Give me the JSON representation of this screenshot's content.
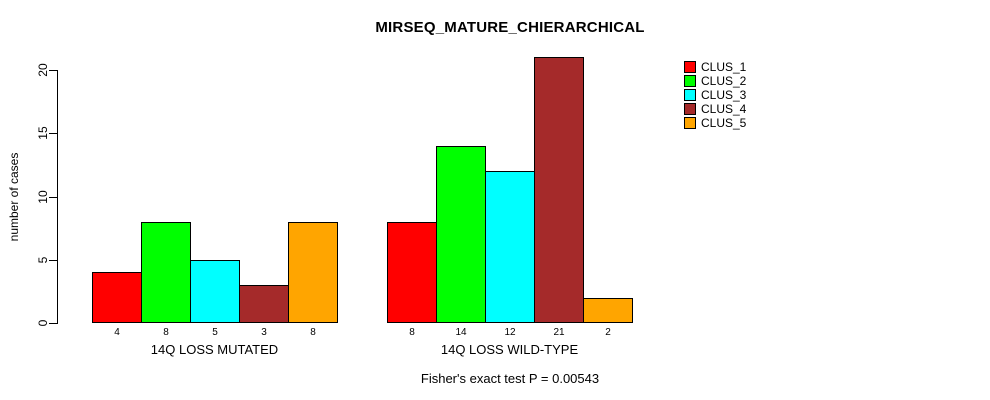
{
  "chart_data": {
    "type": "bar",
    "title": "MIRSEQ_MATURE_CHIERARCHICAL",
    "ylabel": "number of cases",
    "xlabel": "",
    "annotation": "Fisher's exact test P = 0.00543",
    "categories": [
      "14Q LOSS MUTATED",
      "14Q LOSS WILD-TYPE"
    ],
    "series": [
      {
        "name": "CLUS_1",
        "color": "#FF0000",
        "values": [
          4,
          8
        ]
      },
      {
        "name": "CLUS_2",
        "color": "#00FF00",
        "values": [
          8,
          14
        ]
      },
      {
        "name": "CLUS_3",
        "color": "#00FFFF",
        "values": [
          5,
          12
        ]
      },
      {
        "name": "CLUS_4",
        "color": "#A52A2A",
        "values": [
          3,
          21
        ]
      },
      {
        "name": "CLUS_5",
        "color": "#FFA500",
        "values": [
          8,
          2
        ]
      }
    ],
    "bar_value_labels": [
      [
        4,
        8,
        5,
        3,
        8
      ],
      [
        8,
        14,
        12,
        21,
        2
      ]
    ],
    "yticks": [
      0,
      5,
      10,
      15,
      20
    ],
    "ylim": [
      0,
      21
    ],
    "grid": false,
    "legend_position": "top-right-outside",
    "background_color": "#ffffff",
    "axis_color": "#000000"
  }
}
